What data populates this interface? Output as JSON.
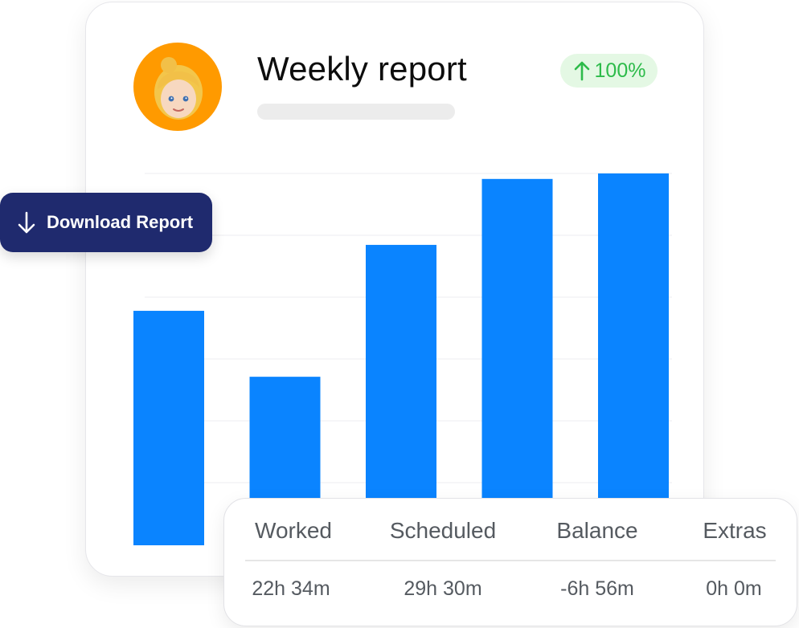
{
  "header": {
    "title": "Weekly report",
    "badge": {
      "arrow_icon": "arrow-up-icon",
      "text": "100%",
      "color": "#2dbb4a"
    }
  },
  "avatar": {
    "icon": "blonde-woman-emoji",
    "background": "#ff9a00"
  },
  "download_button": {
    "icon": "arrow-down-icon",
    "label": "Download Report",
    "background": "#1f2a6e"
  },
  "chart_data": {
    "type": "bar",
    "color": "#0a84ff",
    "values": [
      64,
      46,
      82,
      100,
      101.5
    ],
    "ylim": [
      0,
      105
    ],
    "grid": true
  },
  "stats": {
    "columns": [
      {
        "label": "Worked",
        "value": "22h 34m"
      },
      {
        "label": "Scheduled",
        "value": "29h 30m"
      },
      {
        "label": "Balance",
        "value": "-6h 56m"
      },
      {
        "label": "Extras",
        "value": "0h 0m"
      }
    ]
  }
}
